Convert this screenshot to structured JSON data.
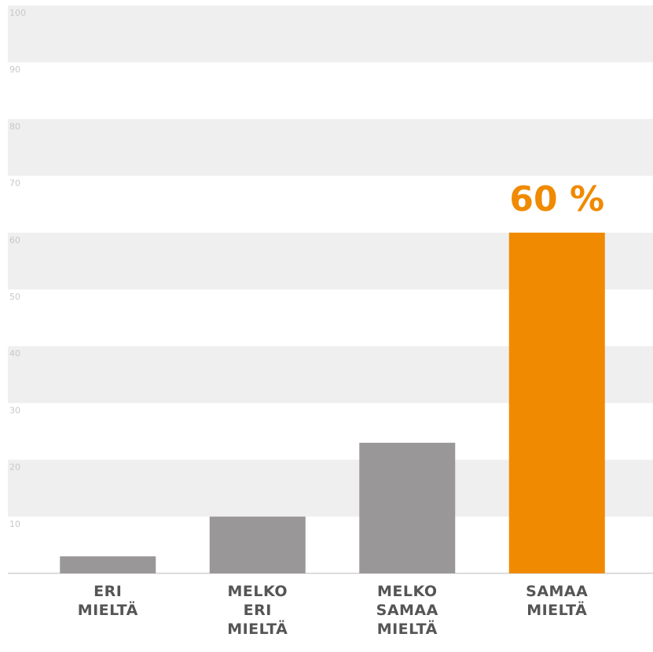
{
  "chart_data": {
    "type": "bar",
    "categories": [
      "ERI MIELTÄ",
      "MELKO ERI MIELTÄ",
      "MELKO SAMAA MIELTÄ",
      "SAMAA MIELTÄ"
    ],
    "values": [
      3,
      10,
      23,
      60
    ],
    "value_labels": [
      null,
      null,
      null,
      "60 %"
    ],
    "colors": [
      "#9a9799",
      "#9a9799",
      "#9a9799",
      "#f08a00"
    ],
    "ylim": [
      0,
      100
    ],
    "yticks": [
      10,
      20,
      30,
      40,
      50,
      60,
      70,
      80,
      90,
      100
    ],
    "grid": true
  }
}
